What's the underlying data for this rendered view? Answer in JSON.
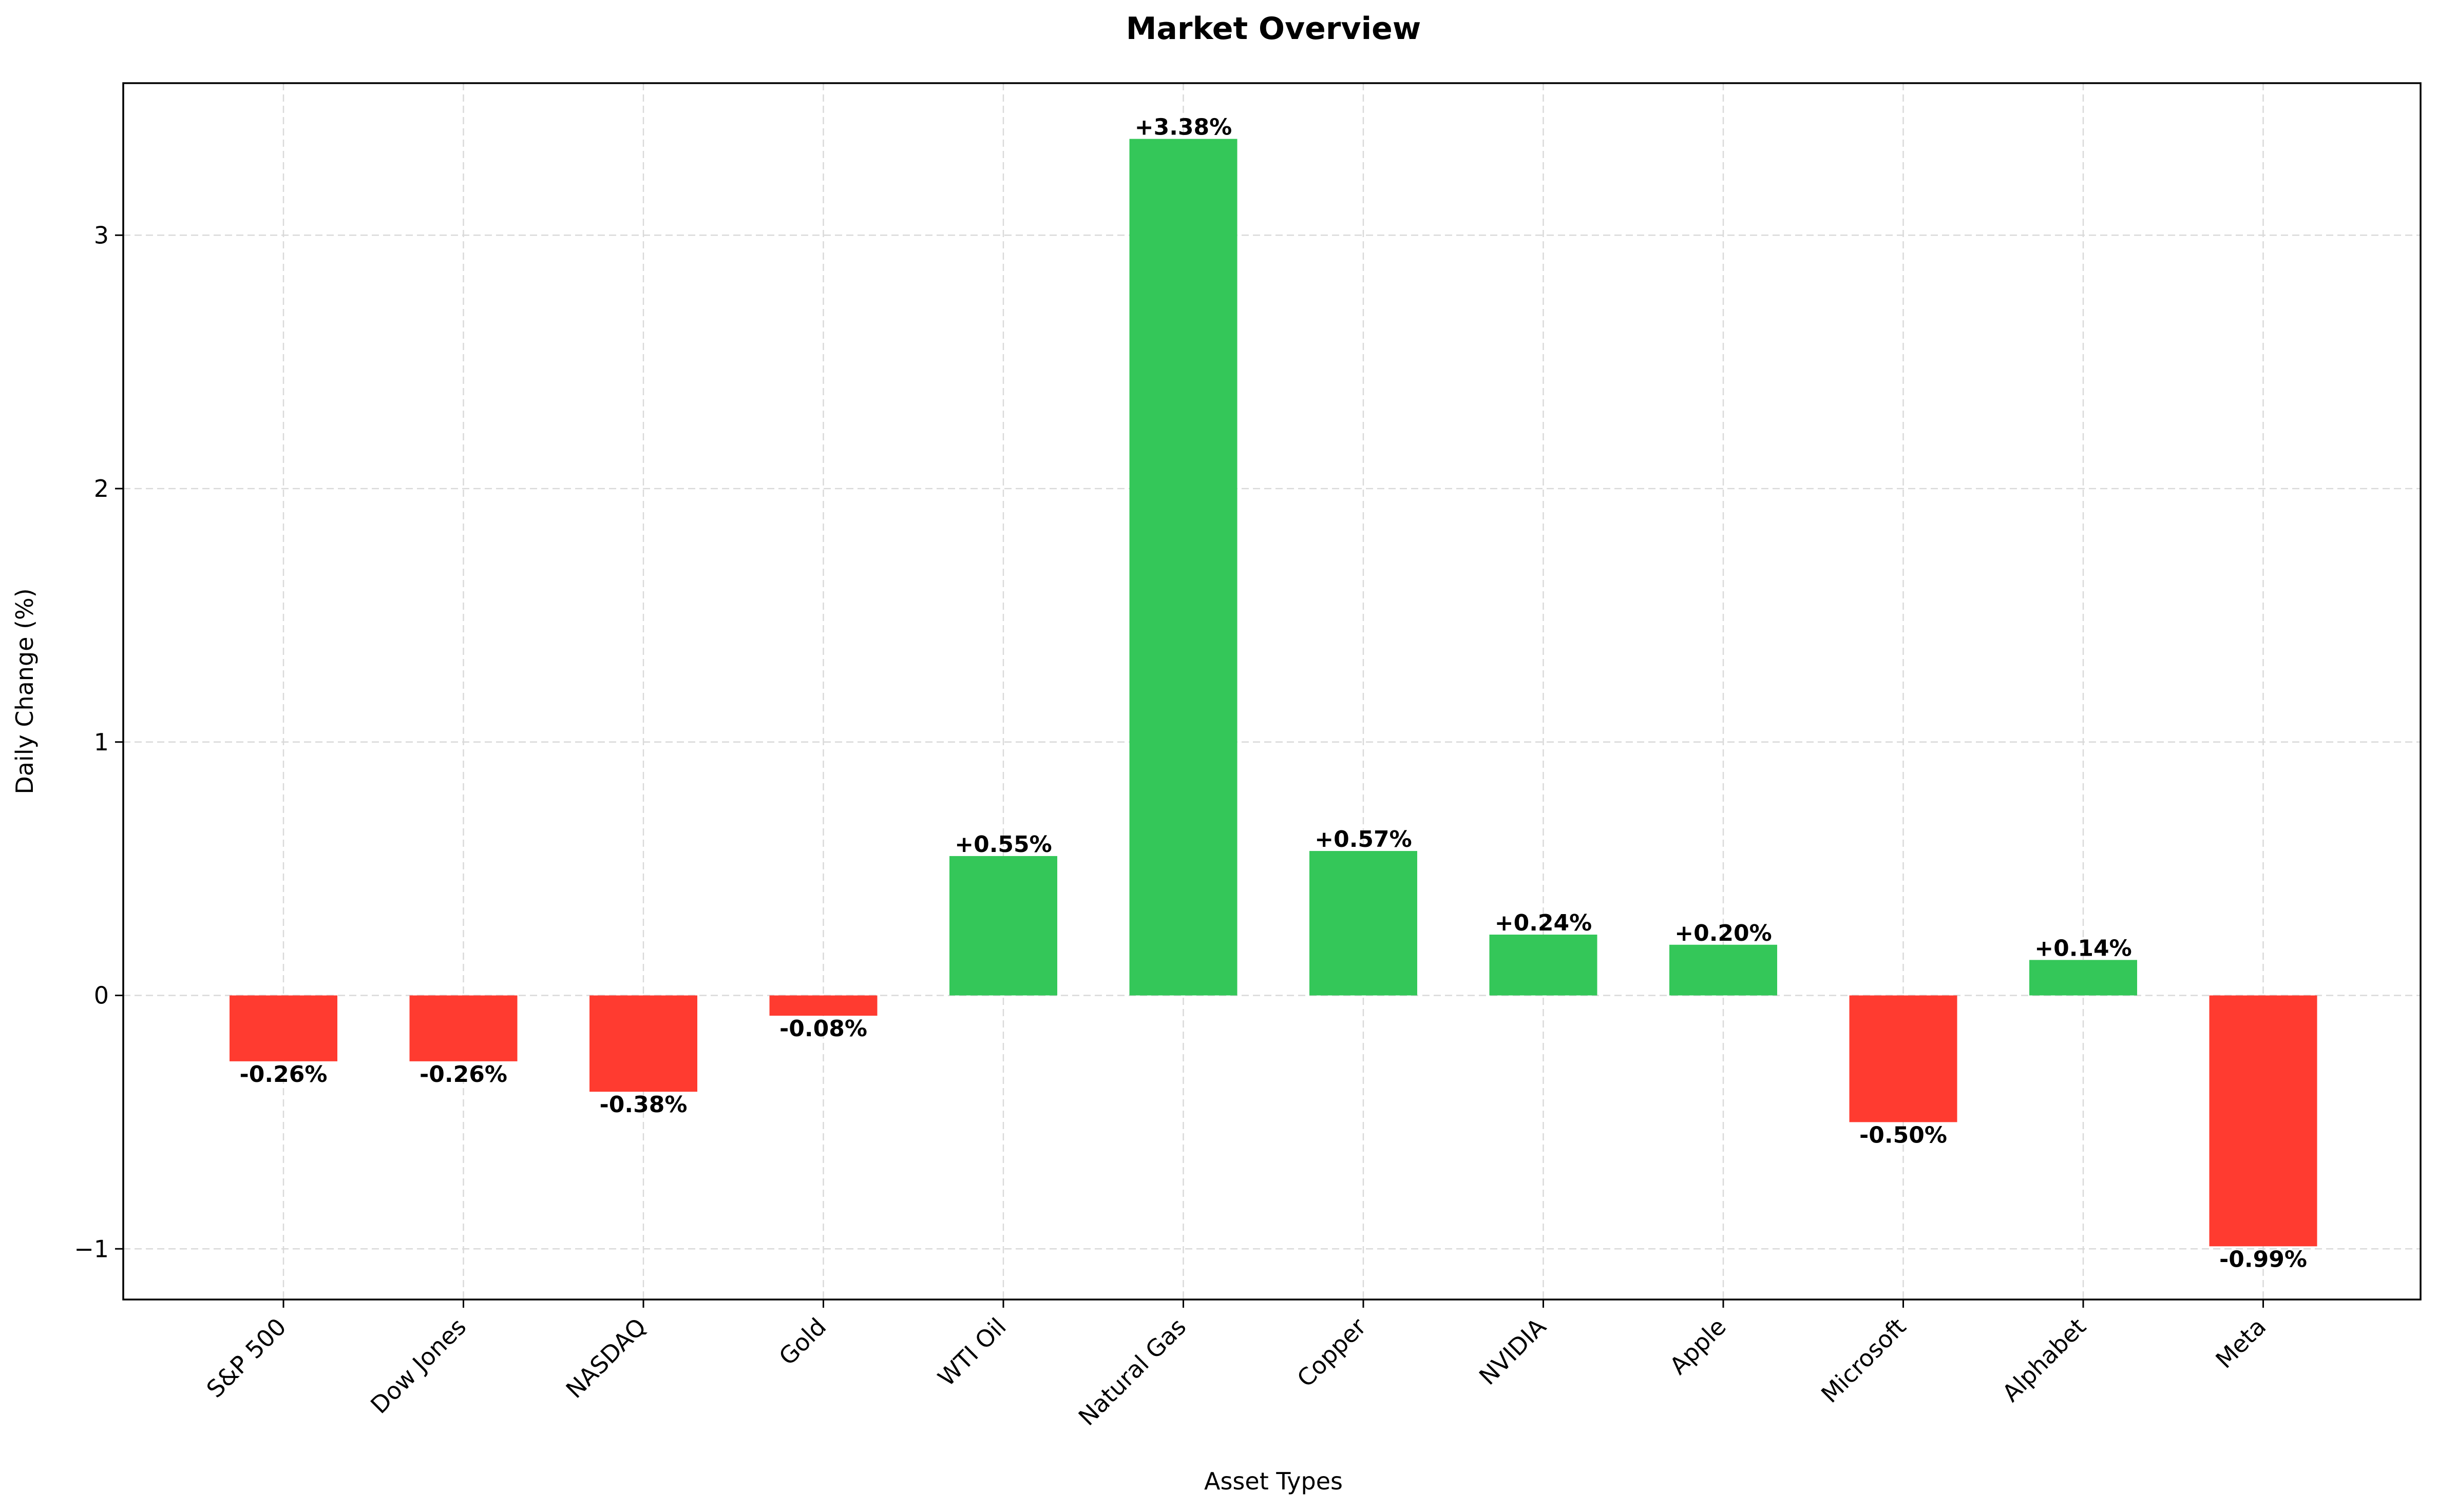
{
  "chart_data": {
    "type": "bar",
    "title": "Market Overview",
    "xlabel": "Asset Types",
    "ylabel": "Daily Change (%)",
    "categories": [
      "S&P 500",
      "Dow Jones",
      "NASDAQ",
      "Gold",
      "WTI Oil",
      "Natural Gas",
      "Copper",
      "NVIDIA",
      "Apple",
      "Microsoft",
      "Alphabet",
      "Meta"
    ],
    "values": [
      -0.26,
      -0.26,
      -0.38,
      -0.08,
      0.55,
      3.38,
      0.57,
      0.24,
      0.2,
      -0.5,
      0.14,
      -0.99
    ],
    "data_labels": [
      "-0.26%",
      "-0.26%",
      "-0.38%",
      "-0.08%",
      "+0.55%",
      "+3.38%",
      "+0.57%",
      "+0.24%",
      "+0.20%",
      "-0.50%",
      "+0.14%",
      "-0.99%"
    ],
    "ylim": [
      -1.2,
      3.6
    ],
    "yticks": [
      -1,
      0,
      1,
      2,
      3
    ],
    "ytick_labels": [
      "−1",
      "0",
      "1",
      "2",
      "3"
    ],
    "grid": true,
    "colors": {
      "positive": "#34c759",
      "negative": "#ff3b30"
    }
  }
}
